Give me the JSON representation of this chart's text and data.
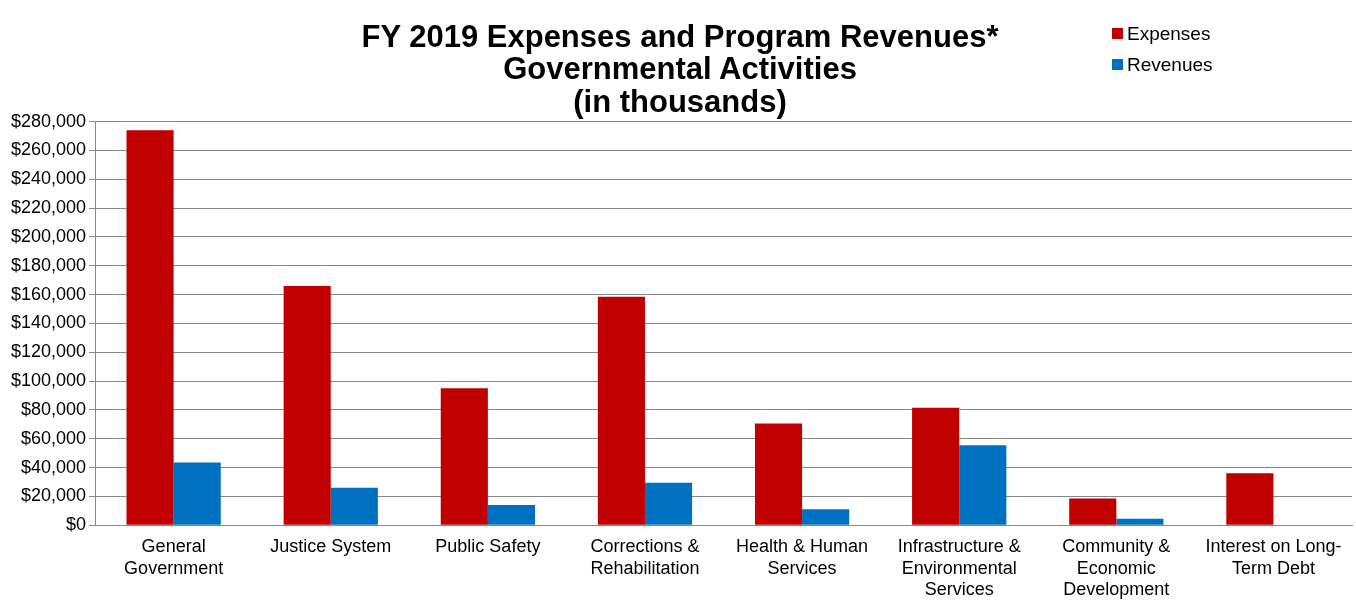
{
  "chart_data": {
    "type": "bar",
    "title": "FY 2019 Expenses and Program Revenues*",
    "subtitle": "Governmental Activities (in thousands)",
    "categories": [
      "General Government",
      "Justice System",
      "Public Safety",
      "Corrections & Rehabilitation",
      "Health & Human Services",
      "Infrastructure & Environmental Services",
      "Community & Economic Development",
      "Interest on Long-Term Debt"
    ],
    "series": [
      {
        "name": "Expenses",
        "color": "#c00000",
        "values": [
          274000,
          166000,
          95000,
          158500,
          70500,
          81500,
          18500,
          36000
        ]
      },
      {
        "name": "Revenues",
        "color": "#0070c0",
        "values": [
          43500,
          26000,
          14000,
          29500,
          11000,
          55500,
          4500,
          null
        ]
      }
    ],
    "ylim": [
      0,
      280000
    ],
    "yticks": [
      {
        "value": 0,
        "label": "$0"
      },
      {
        "value": 20000,
        "label": "$20,000"
      },
      {
        "value": 40000,
        "label": "$40,000"
      },
      {
        "value": 60000,
        "label": "$60,000"
      },
      {
        "value": 80000,
        "label": "$80,000"
      },
      {
        "value": 100000,
        "label": "$100,000"
      },
      {
        "value": 120000,
        "label": "$120,000"
      },
      {
        "value": 140000,
        "label": "$140,000"
      },
      {
        "value": 160000,
        "label": "$160,000"
      },
      {
        "value": 180000,
        "label": "$180,000"
      },
      {
        "value": 200000,
        "label": "$200,000"
      },
      {
        "value": 220000,
        "label": "$220,000"
      },
      {
        "value": 240000,
        "label": "$240,000"
      },
      {
        "value": 260000,
        "label": "$260,000"
      },
      {
        "value": 280000,
        "label": "$280,000"
      }
    ],
    "grid": "y",
    "legend": "top right"
  }
}
